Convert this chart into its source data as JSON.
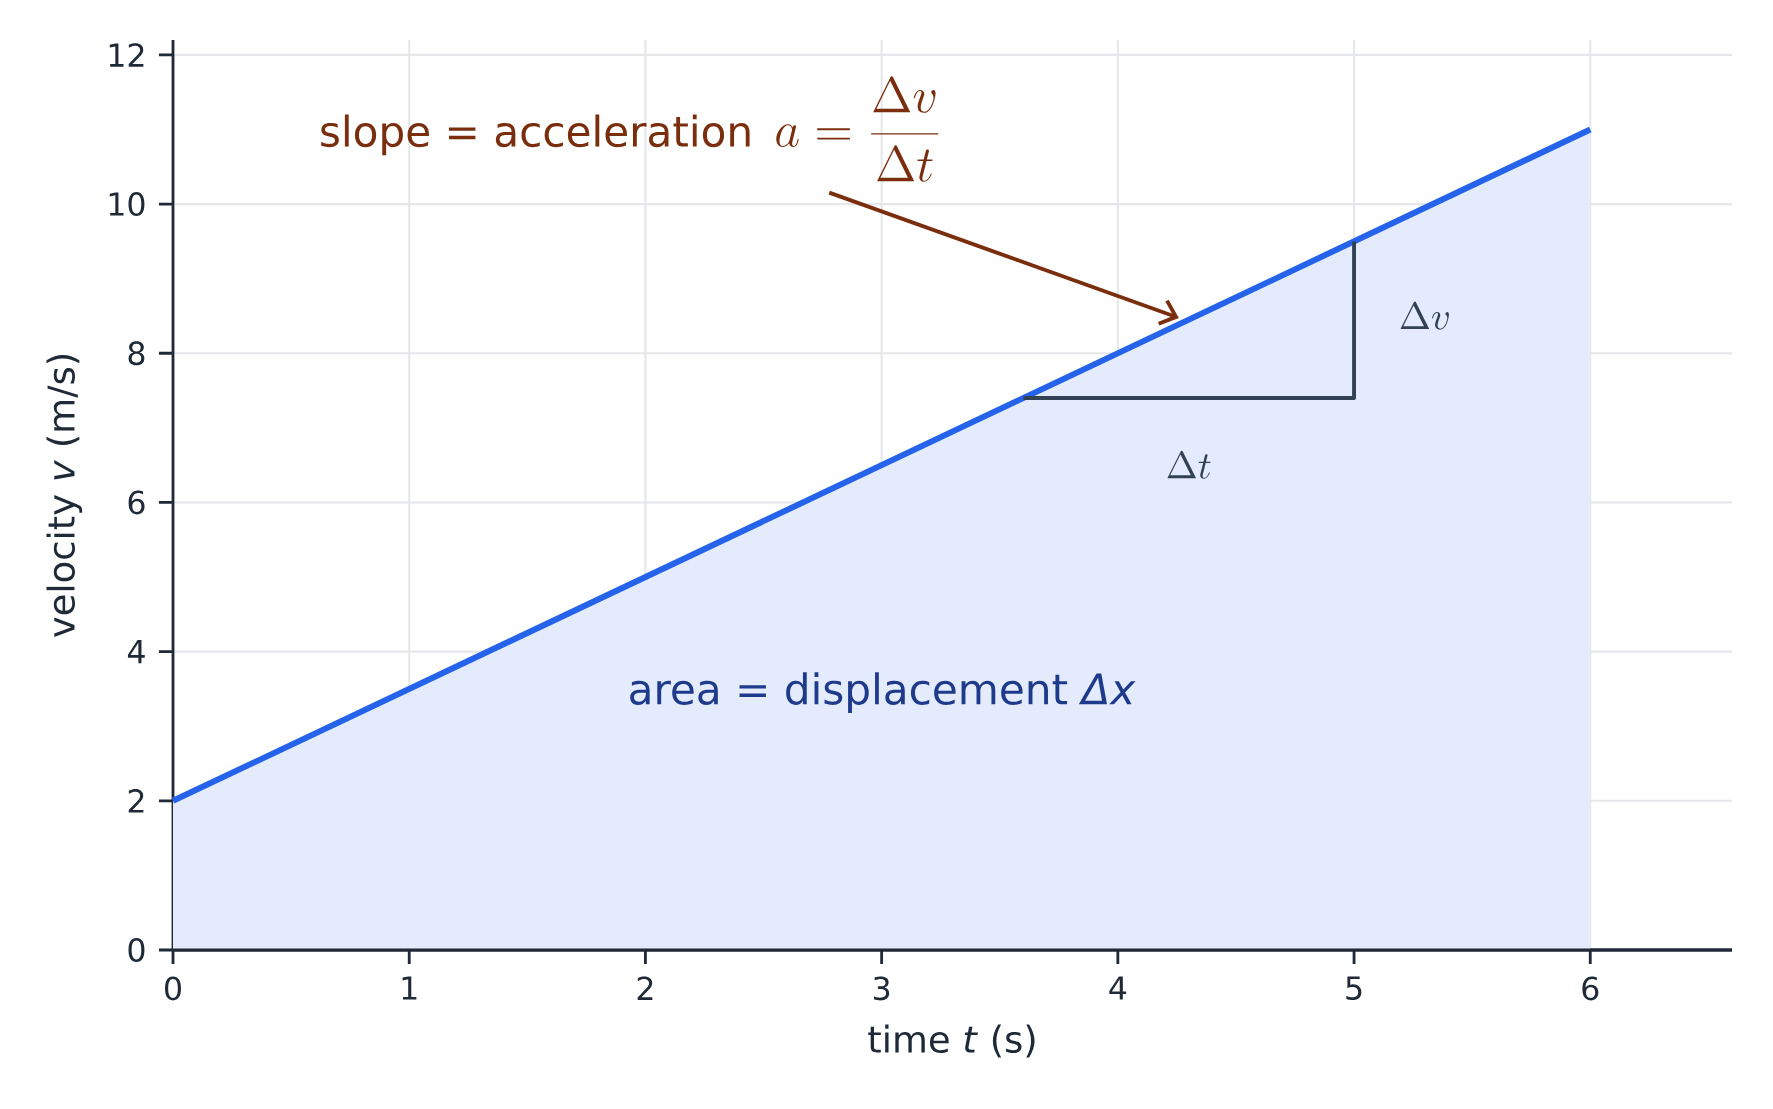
{
  "chart_data": {
    "type": "area",
    "xlabel": "time  *t*  (s)",
    "ylabel": "velocity  *v*  (m/s)",
    "xlim": [
      0,
      6.6
    ],
    "ylim": [
      0,
      12.2
    ],
    "xticks": [
      0,
      1,
      2,
      3,
      4,
      5,
      6
    ],
    "yticks": [
      0,
      2,
      4,
      6,
      8,
      10,
      12
    ],
    "grid": true,
    "series": [
      {
        "color": "#2563eb",
        "x": [
          0,
          6
        ],
        "values": [
          2,
          11
        ]
      },
      {
        "type": "line",
        "color": "#334155",
        "x": [
          3.6,
          5,
          5
        ],
        "values": [
          7.4,
          7.4,
          9.5
        ]
      }
    ],
    "annotations": [
      "slope = acceleration",
      "a = \\frac{\\Delta v}{\\Delta t}",
      "area = displacement  *Δx*",
      "\\Delta v",
      "\\Delta t"
    ]
  }
}
